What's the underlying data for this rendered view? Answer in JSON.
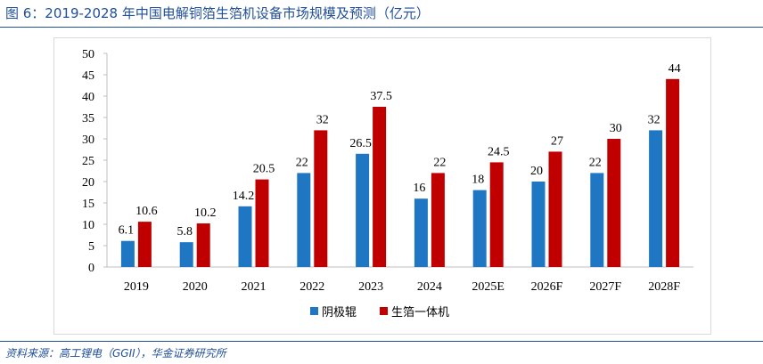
{
  "figure": {
    "title": "图 6：2019-2028 年中国电解铜箔生箔机设备市场规模及预测（亿元）",
    "source": "资料来源：高工锂电（GGII），华金证券研究所"
  },
  "chart_data": {
    "type": "bar",
    "title": "",
    "xlabel": "",
    "ylabel": "",
    "ylim": [
      0,
      50
    ],
    "yticks": [
      0,
      5,
      10,
      15,
      20,
      25,
      30,
      35,
      40,
      45,
      50
    ],
    "grid": false,
    "legend_position": "bottom",
    "categories": [
      "2019",
      "2020",
      "2021",
      "2022",
      "2023",
      "2024",
      "2025E",
      "2026F",
      "2027F",
      "2028F"
    ],
    "series": [
      {
        "name": "阴极辊",
        "color": "#1f77c4",
        "values": [
          6.1,
          5.8,
          14.2,
          22,
          26.5,
          16,
          18,
          20,
          22,
          32
        ],
        "labels": [
          "6.1",
          "5.8",
          "14.2",
          "22",
          "26.5",
          "16",
          "18",
          "20",
          "22",
          "32"
        ]
      },
      {
        "name": "生箔一体机",
        "color": "#c00000",
        "values": [
          10.6,
          10.2,
          20.5,
          32,
          37.5,
          22,
          24.5,
          27,
          30,
          44
        ],
        "labels": [
          "10.6",
          "10.2",
          "20.5",
          "32",
          "37.5",
          "22",
          "24.5",
          "27",
          "30",
          "44"
        ]
      }
    ]
  }
}
